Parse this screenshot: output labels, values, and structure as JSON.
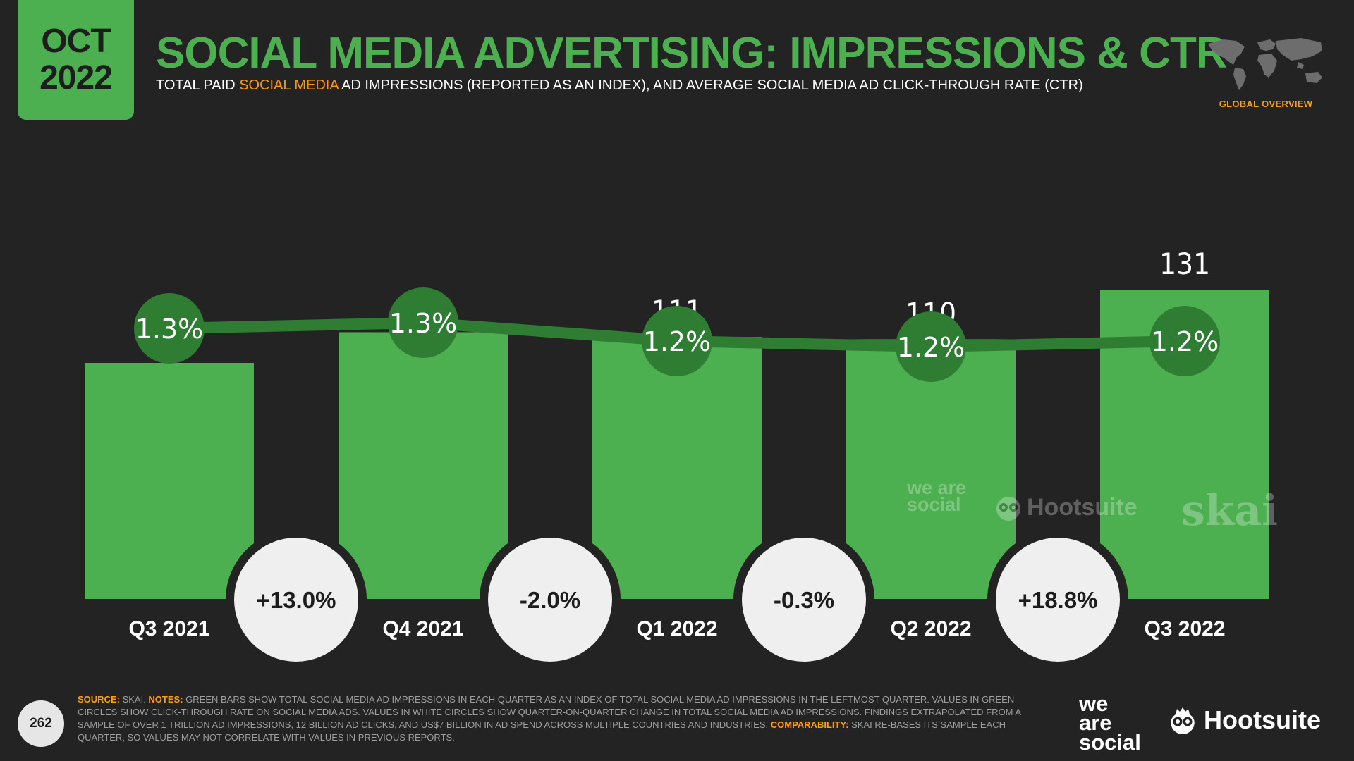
{
  "header": {
    "month": "OCT",
    "year": "2022",
    "title": "SOCIAL MEDIA ADVERTISING: IMPRESSIONS & CTR",
    "subtitle_pre": "TOTAL PAID ",
    "subtitle_highlight": "SOCIAL MEDIA",
    "subtitle_post": " AD IMPRESSIONS (REPORTED AS AN INDEX), AND AVERAGE SOCIAL MEDIA AD CLICK-THROUGH RATE (CTR)",
    "region_label": "GLOBAL OVERVIEW"
  },
  "chart_data": {
    "type": "bar",
    "categories": [
      "Q3 2021",
      "Q4 2021",
      "Q1 2022",
      "Q2 2022",
      "Q3 2022"
    ],
    "series": [
      {
        "values": [
          100,
          113,
          111,
          110,
          131
        ]
      },
      {
        "values": [
          1.3,
          1.3,
          1.2,
          1.2,
          1.2
        ],
        "labels": [
          "1.3%",
          "1.3%",
          "1.2%",
          "1.2%",
          "1.2%"
        ]
      }
    ],
    "changes": [
      "+13.0%",
      "-2.0%",
      "-0.3%",
      "+18.8%"
    ],
    "ylim": [
      0,
      140
    ],
    "colors": {
      "bar": "#4caf50",
      "ctr_circle": "#2e7d32",
      "ctr_line": "#2e7d32",
      "change_circle": "#efefef",
      "background": "#232323"
    }
  },
  "watermarks": {
    "agency": "we are social",
    "platform": "Hootsuite",
    "partner": "skai"
  },
  "footer": {
    "page_number": "262",
    "source_label": "SOURCE:",
    "source_text": " SKAI. ",
    "notes_label": "NOTES:",
    "notes_text": " GREEN BARS SHOW TOTAL SOCIAL MEDIA AD IMPRESSIONS IN EACH QUARTER AS AN INDEX OF TOTAL SOCIAL MEDIA AD IMPRESSIONS IN THE LEFTMOST QUARTER. VALUES IN GREEN CIRCLES SHOW CLICK-THROUGH RATE ON SOCIAL MEDIA ADS. VALUES IN WHITE CIRCLES SHOW QUARTER-ON-QUARTER CHANGE IN TOTAL SOCIAL MEDIA AD IMPRESSIONS. FINDINGS EXTRAPOLATED FROM A SAMPLE OF OVER 1 TRILLION AD IMPRESSIONS, 12 BILLION AD CLICKS, AND US$7 BILLION IN AD SPEND ACROSS MULTIPLE COUNTRIES AND INDUSTRIES. ",
    "comparability_label": "COMPARABILITY:",
    "comparability_text": " SKAI RE-BASES ITS SAMPLE EACH QUARTER, SO VALUES MAY NOT CORRELATE WITH VALUES IN PREVIOUS REPORTS."
  },
  "logos": {
    "agency_line1": "we",
    "agency_line2": "are",
    "agency_line3": "social",
    "platform": "Hootsuite"
  }
}
